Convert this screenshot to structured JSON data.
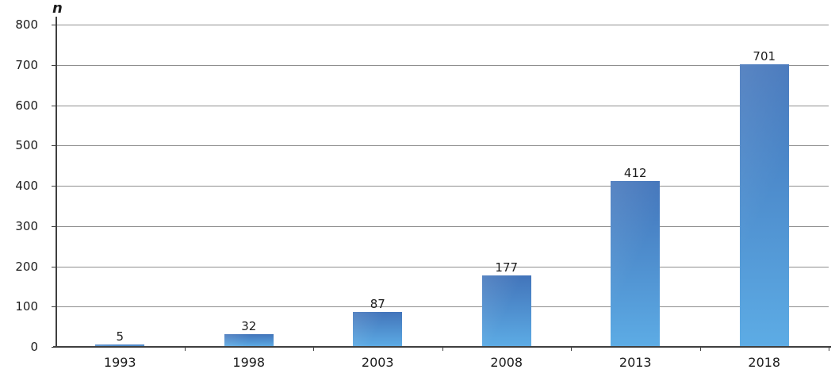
{
  "chart": {
    "y_axis_title": "n"
  },
  "chart_data": {
    "type": "bar",
    "title": "",
    "xlabel": "",
    "ylabel": "n",
    "categories": [
      "1993",
      "1998",
      "2003",
      "2008",
      "2013",
      "2018"
    ],
    "values": [
      5,
      32,
      87,
      177,
      412,
      701
    ],
    "data_labels": [
      "5",
      "32",
      "87",
      "177",
      "412",
      "701"
    ],
    "ylim": [
      0,
      800
    ],
    "yticks": [
      0,
      100,
      200,
      300,
      400,
      500,
      600,
      700,
      800
    ],
    "grid": true,
    "legend": false,
    "colors": {
      "bar_gradient_top": "#4274ba",
      "bar_gradient_bottom": "#5dace5",
      "gridline": "#8f8f8f",
      "axis": "#3f3f3f",
      "text": "#1c1c1c",
      "background": "#ffffff"
    }
  }
}
